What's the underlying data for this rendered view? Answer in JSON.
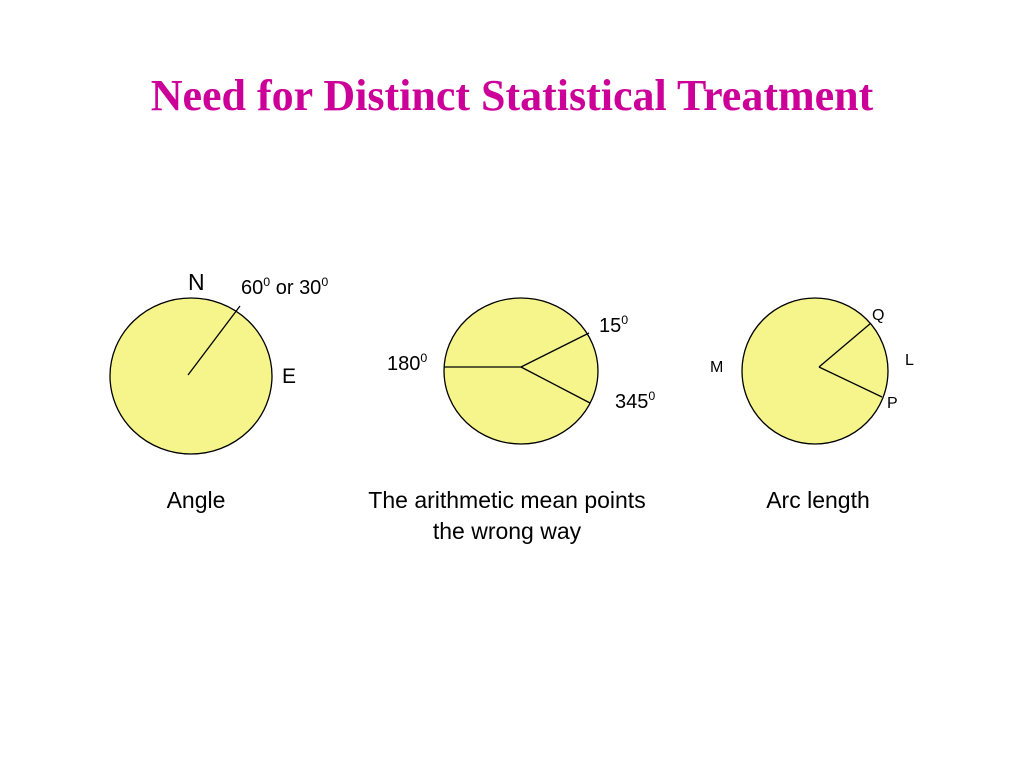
{
  "title": "Need for Distinct Statistical Treatment",
  "colors": {
    "title": "#cc0099",
    "circle_fill": "#f5f58c",
    "circle_stroke": "#000000"
  },
  "panel_angle": {
    "north_label": "N",
    "east_label": "E",
    "angle_value_a": "60",
    "angle_value_a_sup": "0",
    "angle_joiner": " or ",
    "angle_value_b": "30",
    "angle_value_b_sup": "0",
    "caption": "Angle"
  },
  "panel_mean": {
    "angle_15": "15",
    "angle_15_sup": "0",
    "angle_180": "180",
    "angle_180_sup": "0",
    "angle_345": "345",
    "angle_345_sup": "0",
    "caption_line1": "The arithmetic mean points",
    "caption_line2": "the wrong way"
  },
  "panel_arc": {
    "point_q": "Q",
    "point_l": "L",
    "point_m": "M",
    "point_p": "P",
    "caption": "Arc length"
  }
}
